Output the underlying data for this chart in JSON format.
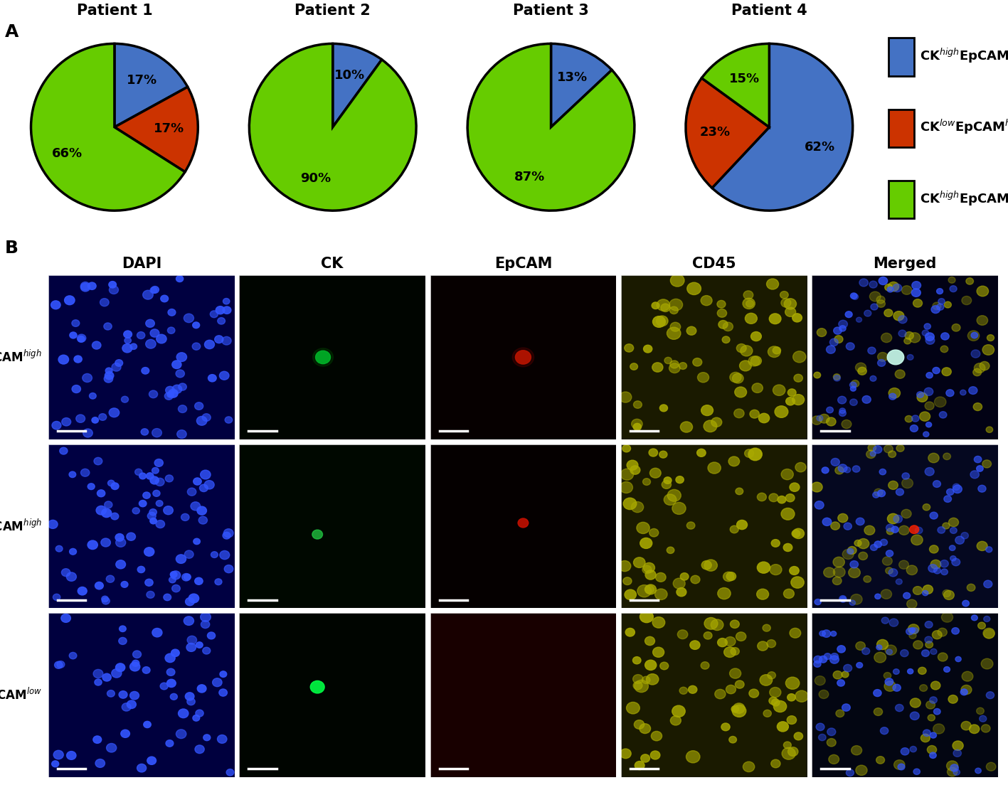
{
  "panel_a_label": "A",
  "panel_b_label": "B",
  "pie_titles": [
    "Patient 1",
    "Patient 2",
    "Patient 3",
    "Patient 4"
  ],
  "pie_data": [
    [
      17,
      17,
      66
    ],
    [
      10,
      0,
      90
    ],
    [
      13,
      0,
      87
    ],
    [
      62,
      23,
      15
    ]
  ],
  "pie_labels": [
    [
      "17%",
      "17%",
      "66%"
    ],
    [
      "10%",
      "",
      "90%"
    ],
    [
      "13%",
      "",
      "87%"
    ],
    [
      "62%",
      "23%",
      "15%"
    ]
  ],
  "pie_colors": [
    "#4472C4",
    "#CC3300",
    "#66CC00"
  ],
  "legend_labels": [
    "CK$^{high}$EpCAM$^{high}$",
    "CK$^{low}$EpCAM$^{high}$",
    "CK$^{high}$EpCAM$^{low}$"
  ],
  "col_headers": [
    "DAPI",
    "CK",
    "EpCAM",
    "CD45",
    "Merged"
  ],
  "row_labels": [
    "CK$^{high}$EpCAM$^{high}$",
    "CK$^{low}$EpCAM$^{high}$",
    "CK$^{high}$EpCAM$^{low}$"
  ],
  "bg_color": "#ffffff",
  "pie_edge_color": "#000000",
  "pie_linewidth": 2.5,
  "title_fontsize": 15,
  "label_fontsize": 13,
  "legend_fontsize": 13,
  "header_fontsize": 15,
  "row_label_fontsize": 12,
  "panel_label_fontsize": 18,
  "img_colors": [
    [
      "#000040",
      "#000500",
      "#060000",
      "#1a1a00",
      "#020215"
    ],
    [
      "#000042",
      "#000800",
      "#050000",
      "#1a1a00",
      "#050820"
    ],
    [
      "#00003e",
      "#000500",
      "#180000",
      "#1a1a00",
      "#030612"
    ]
  ]
}
